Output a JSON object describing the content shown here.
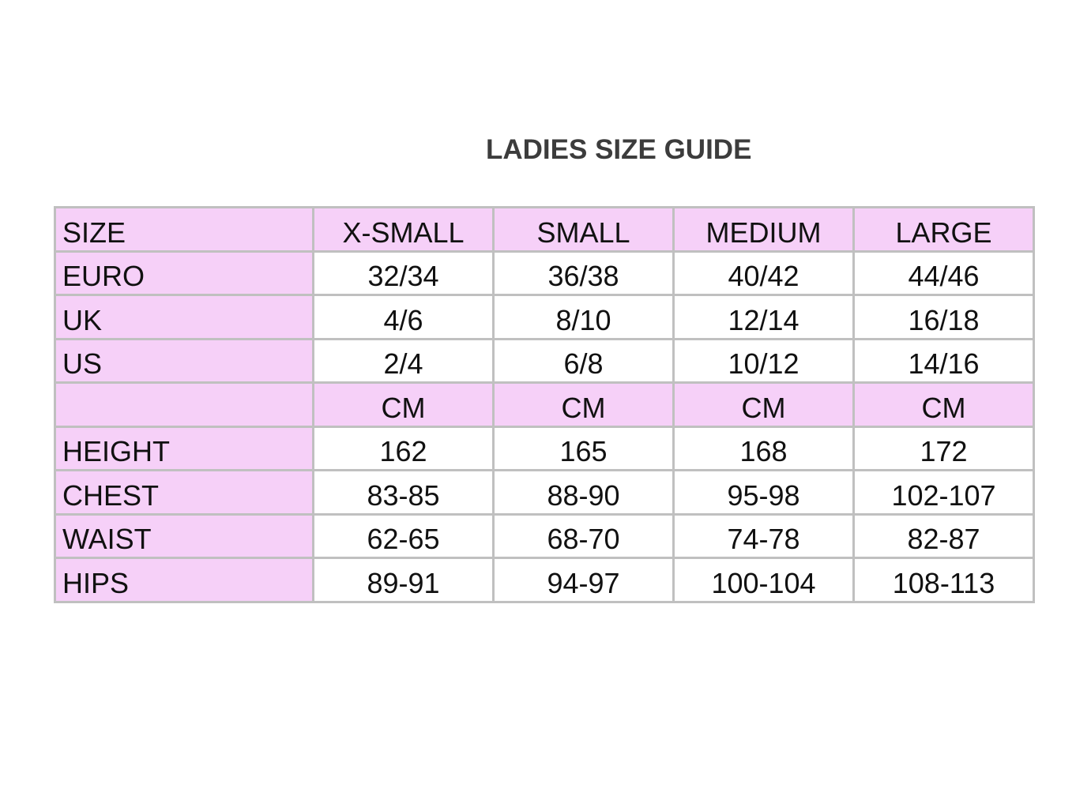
{
  "title": "LADIES SIZE GUIDE",
  "colors": {
    "highlight": "#f6d0f8",
    "border": "#c0c0c0"
  },
  "rows": [
    {
      "label": "SIZE",
      "values": [
        "X-SMALL",
        "SMALL",
        "MEDIUM",
        "LARGE"
      ],
      "highlight": true
    },
    {
      "label": "EURO",
      "values": [
        "32/34",
        "36/38",
        "40/42",
        "44/46"
      ]
    },
    {
      "label": "UK",
      "values": [
        "4/6",
        "8/10",
        "12/14",
        "16/18"
      ]
    },
    {
      "label": "US",
      "values": [
        "2/4",
        "6/8",
        "10/12",
        "14/16"
      ]
    },
    {
      "label": "",
      "values": [
        "CM",
        "CM",
        "CM",
        "CM"
      ],
      "highlight": true
    },
    {
      "label": "HEIGHT",
      "values": [
        "162",
        "165",
        "168",
        "172"
      ]
    },
    {
      "label": "CHEST",
      "values": [
        "83-85",
        "88-90",
        "95-98",
        "102-107"
      ]
    },
    {
      "label": "WAIST",
      "values": [
        "62-65",
        "68-70",
        "74-78",
        "82-87"
      ]
    },
    {
      "label": "HIPS",
      "values": [
        "89-91",
        "94-97",
        "100-104",
        "108-113"
      ]
    }
  ]
}
